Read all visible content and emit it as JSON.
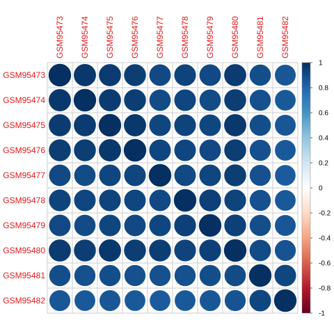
{
  "chart_data": {
    "type": "heatmap",
    "subtype": "correlation-circle-matrix",
    "labels": [
      "GSM95473",
      "GSM95474",
      "GSM95475",
      "GSM95476",
      "GSM95477",
      "GSM95478",
      "GSM95479",
      "GSM95480",
      "GSM95481",
      "GSM95482"
    ],
    "matrix": [
      [
        1.0,
        0.97,
        0.96,
        0.95,
        0.91,
        0.93,
        0.91,
        0.96,
        0.89,
        0.86
      ],
      [
        0.97,
        1.0,
        0.96,
        0.95,
        0.9,
        0.92,
        0.9,
        0.95,
        0.88,
        0.85
      ],
      [
        0.96,
        0.96,
        1.0,
        0.97,
        0.92,
        0.93,
        0.92,
        0.97,
        0.89,
        0.86
      ],
      [
        0.95,
        0.95,
        0.97,
        1.0,
        0.92,
        0.92,
        0.91,
        0.95,
        0.88,
        0.85
      ],
      [
        0.91,
        0.9,
        0.92,
        0.92,
        1.0,
        0.91,
        0.92,
        0.95,
        0.88,
        0.84
      ],
      [
        0.93,
        0.92,
        0.93,
        0.92,
        0.91,
        1.0,
        0.94,
        0.93,
        0.88,
        0.85
      ],
      [
        0.91,
        0.9,
        0.92,
        0.91,
        0.92,
        0.94,
        1.0,
        0.94,
        0.89,
        0.86
      ],
      [
        0.96,
        0.95,
        0.97,
        0.95,
        0.95,
        0.93,
        0.94,
        1.0,
        0.9,
        0.87
      ],
      [
        0.89,
        0.88,
        0.89,
        0.88,
        0.88,
        0.88,
        0.89,
        0.9,
        1.0,
        0.92
      ],
      [
        0.86,
        0.85,
        0.86,
        0.85,
        0.84,
        0.85,
        0.86,
        0.87,
        0.92,
        1.0
      ]
    ],
    "colorbar": {
      "ticks": [
        "1",
        "0.8",
        "0.6",
        "0.4",
        "0.2",
        "0",
        "-0.2",
        "-0.4",
        "-0.6",
        "-0.8",
        "-1"
      ],
      "range": [
        -1,
        1
      ],
      "colors": [
        "#67001F",
        "#B2182B",
        "#D6604D",
        "#F4A582",
        "#FDDBC7",
        "#FFFFFF",
        "#D1E5F0",
        "#92C5DE",
        "#4393C3",
        "#2166AC",
        "#053061"
      ]
    },
    "label_color": "#E41A1C",
    "grid": true,
    "legend": "right"
  }
}
